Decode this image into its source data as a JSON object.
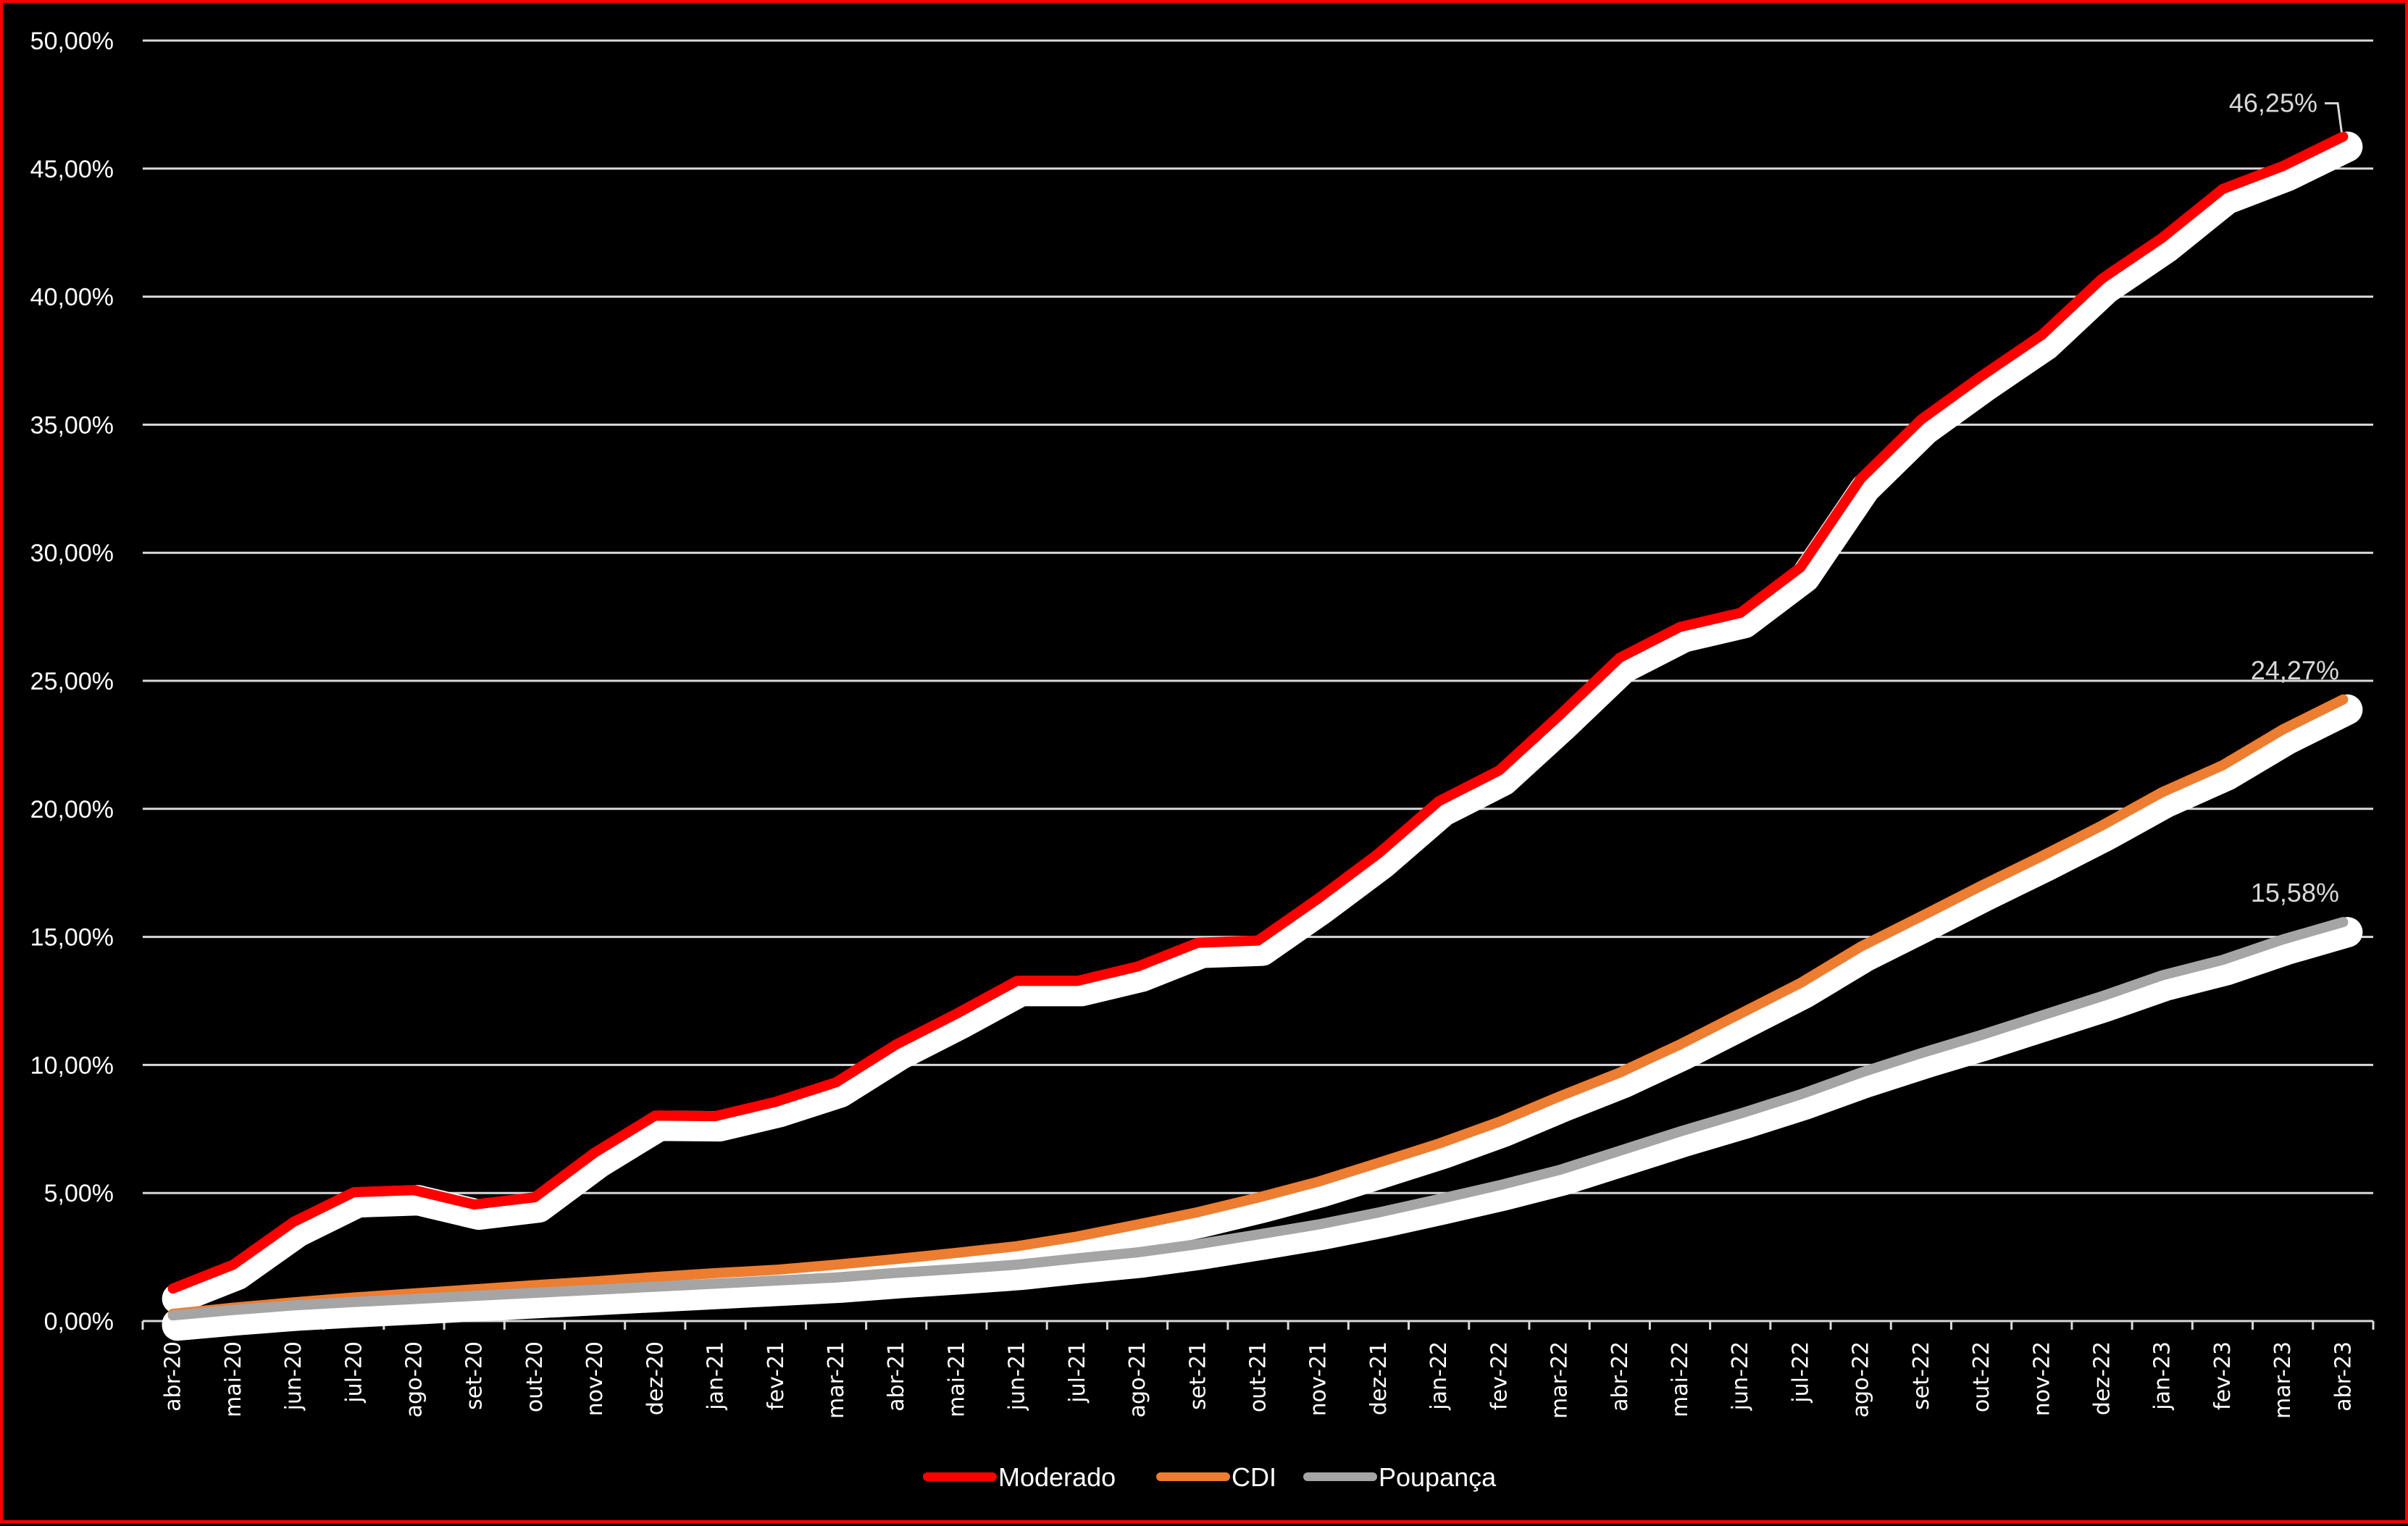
{
  "chart_data": {
    "type": "line",
    "title": "",
    "xlabel": "",
    "ylabel": "",
    "ylim": [
      0,
      50
    ],
    "y_ticks": [
      "0,00%",
      "5,00%",
      "10,00%",
      "15,00%",
      "20,00%",
      "25,00%",
      "30,00%",
      "35,00%",
      "40,00%",
      "45,00%",
      "50,00%"
    ],
    "grid": true,
    "legend_position": "bottom",
    "categories": [
      "abr-20",
      "mai-20",
      "jun-20",
      "jul-20",
      "ago-20",
      "set-20",
      "out-20",
      "nov-20",
      "dez-20",
      "jan-21",
      "fev-21",
      "mar-21",
      "abr-21",
      "mai-21",
      "jun-21",
      "jul-21",
      "ago-21",
      "set-21",
      "out-21",
      "nov-21",
      "dez-21",
      "jan-22",
      "fev-22",
      "mar-22",
      "abr-22",
      "mai-22",
      "jun-22",
      "jul-22",
      "ago-22",
      "set-22",
      "out-22",
      "nov-22",
      "dez-22",
      "jan-23",
      "fev-23",
      "mar-23",
      "abr-23"
    ],
    "series": [
      {
        "name": "Moderado",
        "color": "#ff0000",
        "values": [
          1.27,
          2.2,
          3.87,
          5.03,
          5.11,
          4.55,
          4.83,
          6.58,
          8.02,
          8.0,
          8.56,
          9.32,
          10.8,
          12.0,
          13.28,
          13.28,
          13.84,
          14.77,
          14.86,
          16.5,
          18.26,
          20.3,
          21.5,
          23.65,
          25.9,
          27.1,
          27.65,
          29.43,
          32.9,
          35.2,
          36.9,
          38.5,
          40.7,
          42.3,
          44.2,
          45.1,
          46.25
        ],
        "end_label": "46,25%"
      },
      {
        "name": "CDI",
        "color": "#ed7d31",
        "values": [
          0.28,
          0.52,
          0.73,
          0.92,
          1.08,
          1.24,
          1.4,
          1.55,
          1.72,
          1.87,
          2.0,
          2.2,
          2.42,
          2.66,
          2.92,
          3.3,
          3.77,
          4.25,
          4.82,
          5.44,
          6.18,
          6.93,
          7.78,
          8.77,
          9.7,
          10.8,
          12.0,
          13.2,
          14.62,
          15.8,
          17.0,
          18.15,
          19.35,
          20.65,
          21.7,
          23.1,
          24.27
        ],
        "end_label": "24,27%"
      },
      {
        "name": "Poupança",
        "color": "#a5a5a5",
        "values": [
          0.22,
          0.43,
          0.61,
          0.74,
          0.86,
          0.98,
          1.1,
          1.22,
          1.34,
          1.46,
          1.58,
          1.7,
          1.88,
          2.03,
          2.2,
          2.45,
          2.68,
          3.0,
          3.38,
          3.77,
          4.24,
          4.76,
          5.3,
          5.9,
          6.65,
          7.4,
          8.1,
          8.85,
          9.7,
          10.46,
          11.17,
          11.93,
          12.68,
          13.5,
          14.1,
          14.9,
          15.58
        ],
        "end_label": "15,58%"
      }
    ]
  },
  "legend": {
    "items": [
      {
        "label": "Moderado",
        "color": "#ff0000"
      },
      {
        "label": "CDI",
        "color": "#ed7d31"
      },
      {
        "label": "Poupança",
        "color": "#a5a5a5"
      }
    ]
  },
  "colors": {
    "background": "#000000",
    "border": "#ff0000",
    "gridline": "#d9d9d9",
    "text": "#ffffff",
    "data_label": "#d9d9d9",
    "line_glow": "#ffffff"
  }
}
